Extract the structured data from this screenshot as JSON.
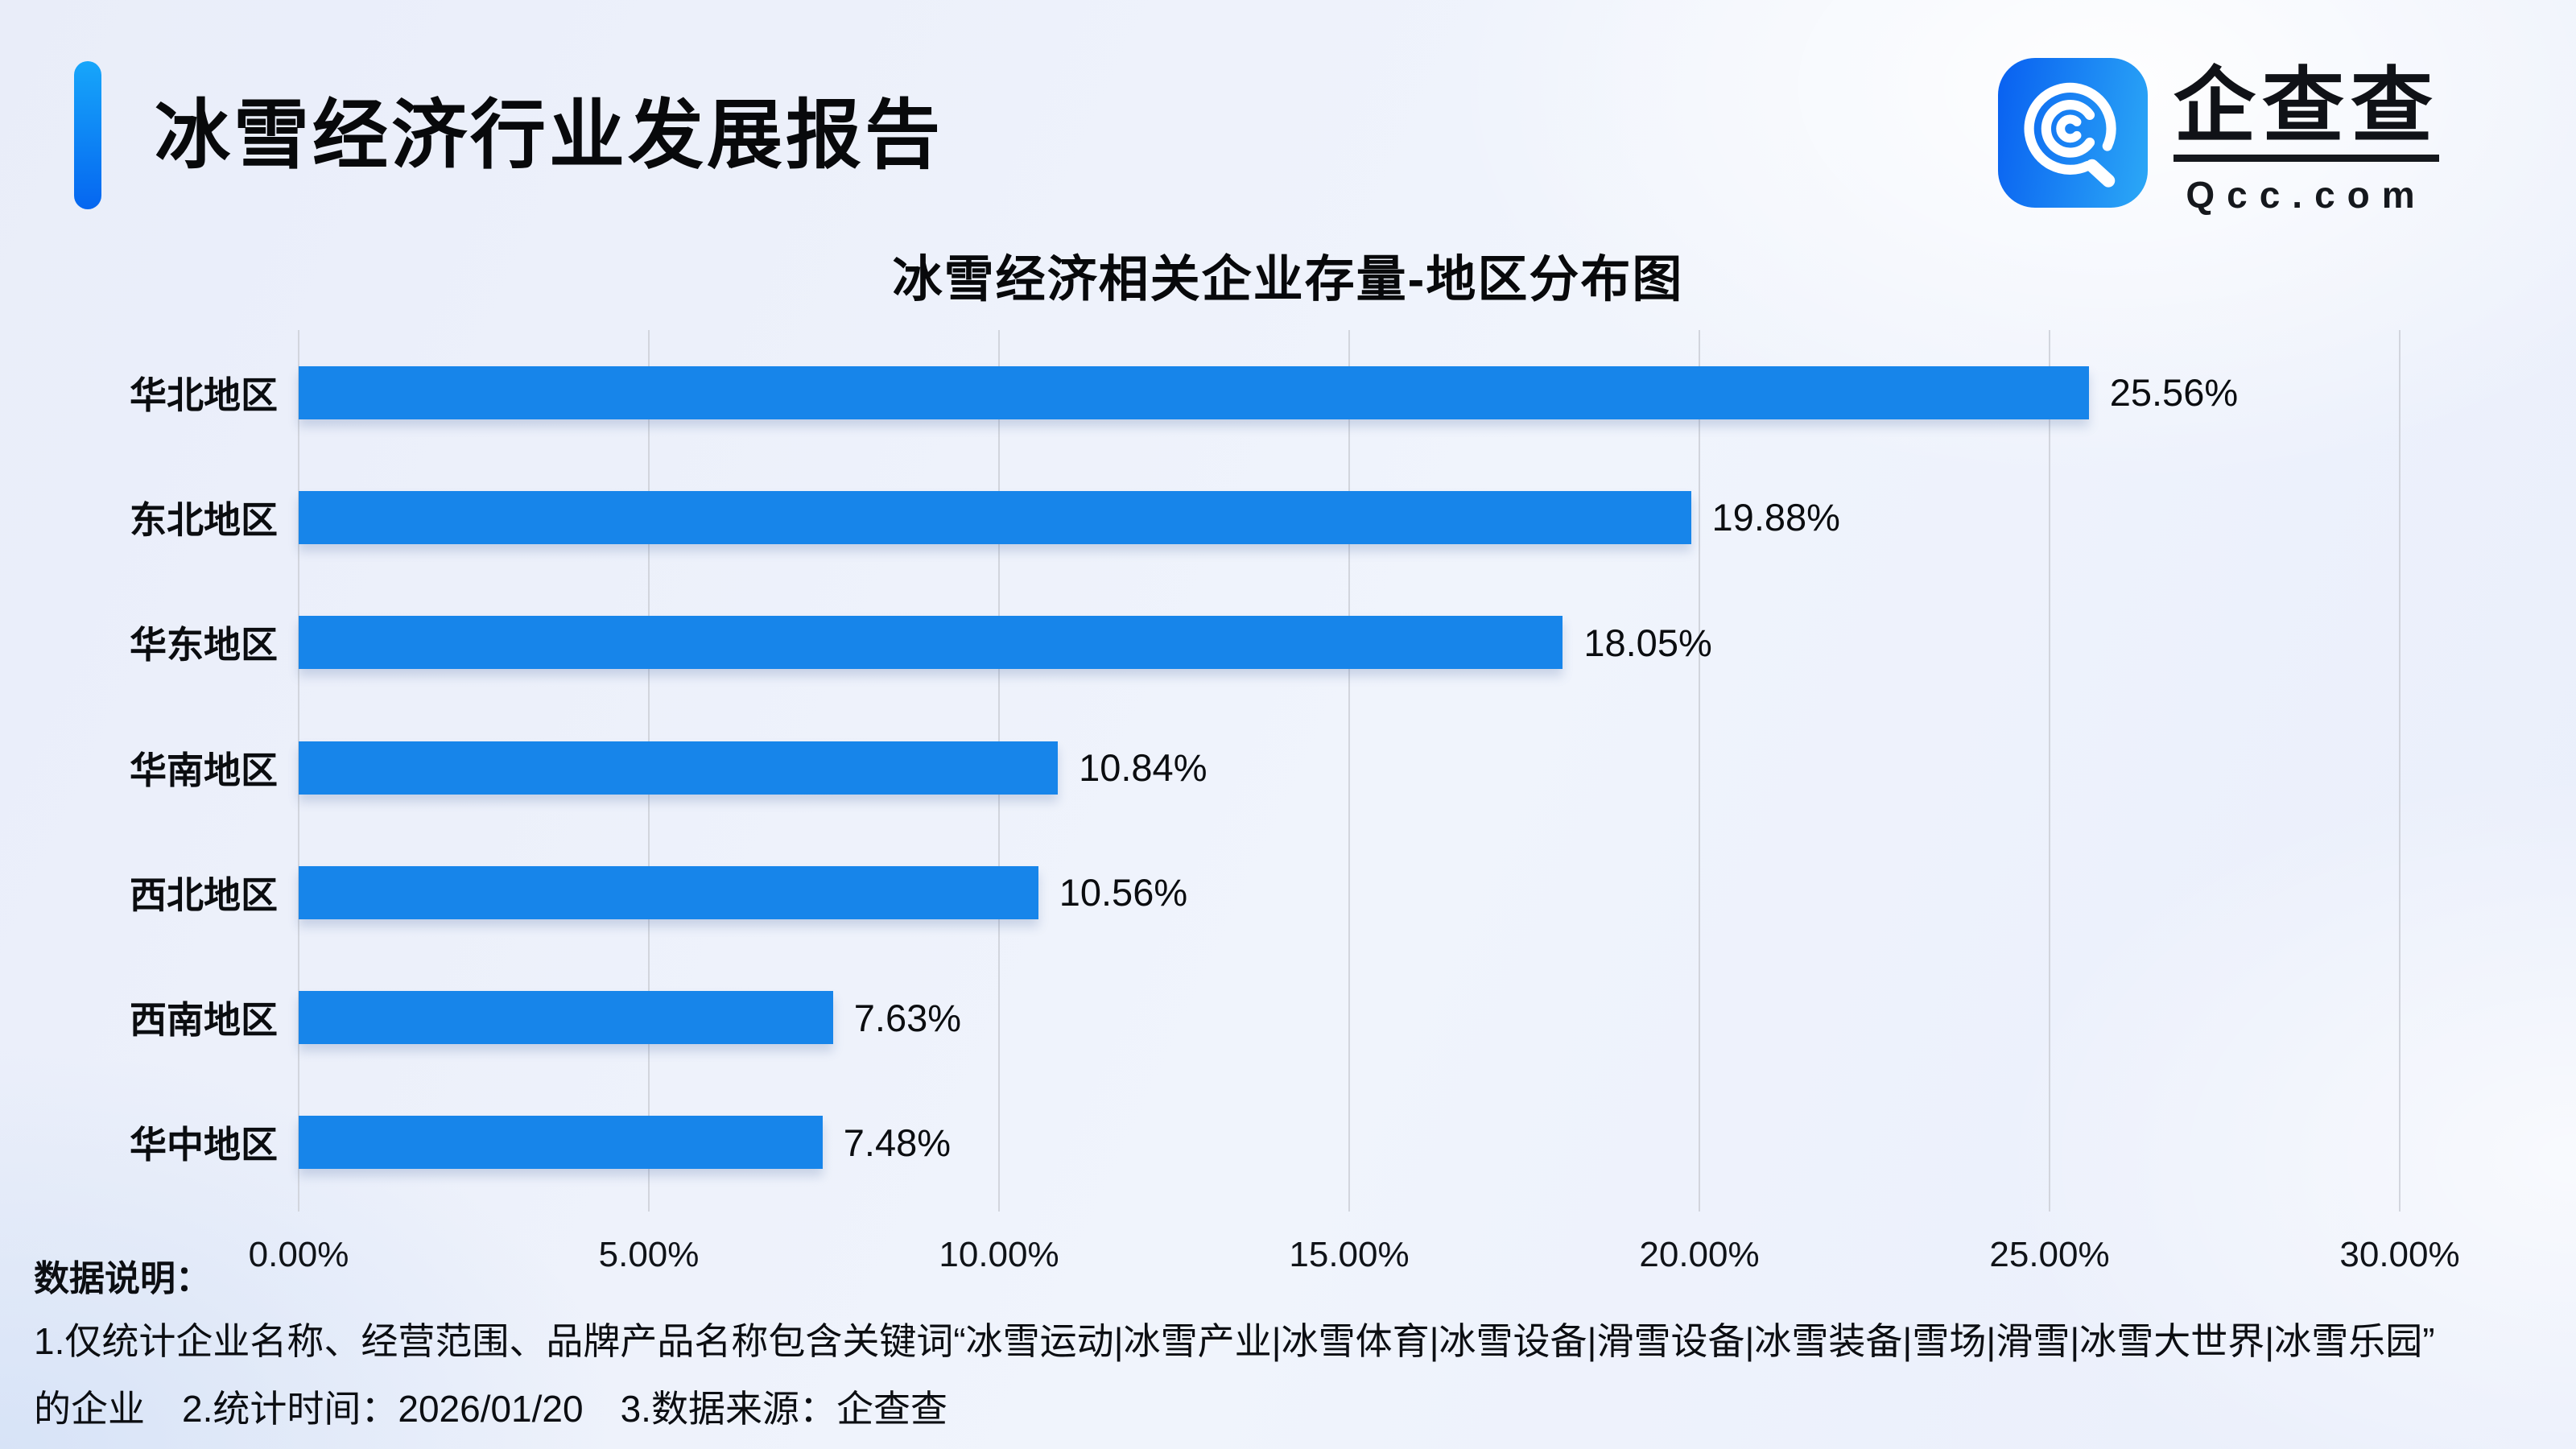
{
  "header": {
    "title": "冰雪经济行业发展报告"
  },
  "logo": {
    "name": "企查查",
    "domain": "Qcc.com"
  },
  "chart_data": {
    "type": "bar",
    "orientation": "horizontal",
    "title": "冰雪经济相关企业存量-地区分布图",
    "categories": [
      "华北地区",
      "东北地区",
      "华东地区",
      "华南地区",
      "西北地区",
      "西南地区",
      "华中地区"
    ],
    "values": [
      25.56,
      19.88,
      18.05,
      10.84,
      10.56,
      7.63,
      7.48
    ],
    "value_labels": [
      "25.56%",
      "19.88%",
      "18.05%",
      "10.84%",
      "10.56%",
      "7.63%",
      "7.48%"
    ],
    "x_ticks": [
      "0.00%",
      "5.00%",
      "10.00%",
      "15.00%",
      "20.00%",
      "25.00%",
      "30.00%"
    ],
    "xlim": [
      0,
      30
    ],
    "grid": true,
    "legend": "none"
  },
  "notes": {
    "label": "数据说明：",
    "line1": "1.仅统计企业名称、经营范围、品牌产品名称包含关键词“冰雪运动|冰雪产业|冰雪体育|冰雪设备|滑雪设备|冰雪装备|雪场|滑雪|冰雪大世界|冰雪乐园”",
    "line2": "的企业　2.统计时间：2026/01/20　3.数据来源：企查查"
  },
  "colors": {
    "bar": "#1785ea",
    "accent_top": "#17a6fa",
    "accent_bottom": "#0566f0",
    "logo_dark": "#0a63f1",
    "logo_light": "#2aa5f6",
    "gridline": "#d2d5dd",
    "text": "#0b0d10"
  }
}
